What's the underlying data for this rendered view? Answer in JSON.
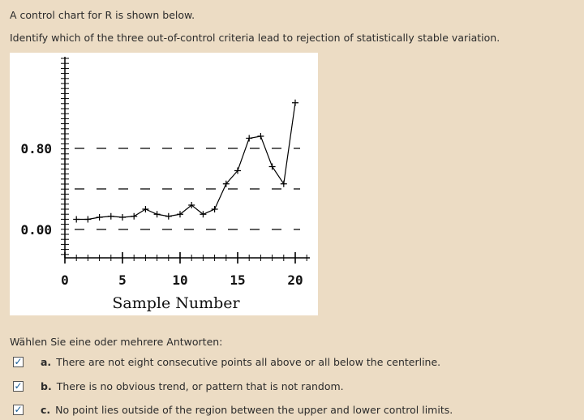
{
  "question": {
    "line1": "A control chart for R is shown below.",
    "line2": "Identify which of the three out-of-control criteria lead to rejection of statistically stable variation."
  },
  "answers_prompt": "Wählen Sie eine oder mehrere Antworten:",
  "answers": [
    {
      "letter": "a.",
      "text": "There are not eight consecutive points all above or all below the centerline.",
      "checked": true
    },
    {
      "letter": "b.",
      "text": "There is no obvious trend, or pattern that is not random.",
      "checked": true
    },
    {
      "letter": "c.",
      "text": "No point lies outside of the region between the upper and lower control limits.",
      "checked": true
    }
  ],
  "check_mark": "✓",
  "colors": {
    "page_bg": "#ecdcc4",
    "check": "#1a5e96"
  },
  "chart_data": {
    "type": "line",
    "xlabel": "Sample Number",
    "xticks": [
      0,
      5,
      10,
      15,
      20
    ],
    "yticks": [
      "0.00",
      "0.80"
    ],
    "reference_lines": {
      "center": 0.4,
      "ucl": 0.8,
      "lcl": 0.0
    },
    "series": [
      {
        "x": [
          1,
          2,
          3,
          4,
          5,
          6,
          7,
          8,
          9,
          10,
          11,
          12,
          13,
          14,
          15,
          16,
          17,
          18,
          19,
          20
        ],
        "values": [
          0.1,
          0.1,
          0.12,
          0.13,
          0.12,
          0.13,
          0.2,
          0.15,
          0.13,
          0.15,
          0.24,
          0.15,
          0.2,
          0.45,
          0.58,
          0.9,
          0.92,
          0.62,
          0.45,
          1.25
        ]
      }
    ]
  }
}
